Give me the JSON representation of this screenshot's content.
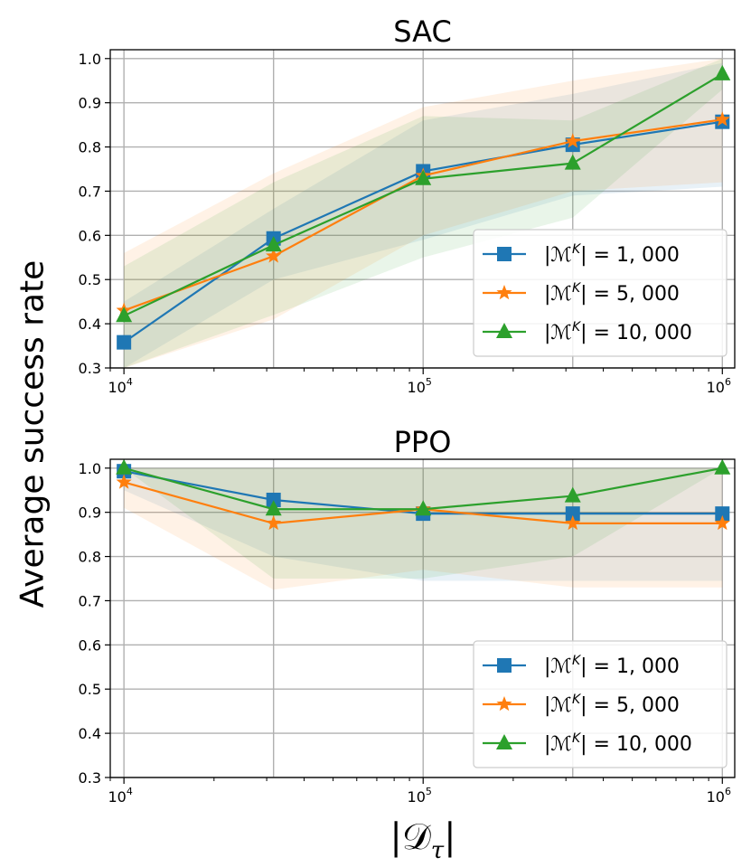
{
  "figure": {
    "ylabel": "Average success rate",
    "xlabel": "|𝒟",
    "xlabel_sub": "τ",
    "xlabel_close": "|"
  },
  "colors": {
    "blue": "#1f77b4",
    "orange": "#ff7f0e",
    "green": "#2ca02c",
    "grid": "#b0b0b0"
  },
  "chart_data": [
    {
      "type": "line",
      "title": "SAC",
      "xscale": "log",
      "xlim": [
        9000,
        1100000
      ],
      "ylim": [
        0.3,
        1.02
      ],
      "grid": true,
      "legend_position": "lower-right",
      "x": [
        10000,
        31623,
        100000,
        316228,
        1000000
      ],
      "xticks": [
        10000,
        100000,
        1000000
      ],
      "xtick_base": "10",
      "xtick_exps": [
        "4",
        "5",
        "6"
      ],
      "yticks": [
        "0.3",
        "0.4",
        "0.5",
        "0.6",
        "0.7",
        "0.8",
        "0.9",
        "1.0"
      ],
      "series": [
        {
          "name": "|ℳ",
          "name_sup": "K",
          "name_suffix": "| = 1, 000",
          "color": "#1f77b4",
          "marker": "square",
          "values": [
            0.358,
            0.593,
            0.745,
            0.805,
            0.857
          ],
          "lower": [
            0.3,
            0.5,
            0.59,
            0.69,
            0.71
          ],
          "upper": [
            0.45,
            0.66,
            0.86,
            0.92,
            0.99
          ]
        },
        {
          "name": "|ℳ",
          "name_sup": "K",
          "name_suffix": "| = 5, 000",
          "color": "#ff7f0e",
          "marker": "star",
          "values": [
            0.43,
            0.553,
            0.735,
            0.813,
            0.862
          ],
          "lower": [
            0.3,
            0.41,
            0.6,
            0.7,
            0.72
          ],
          "upper": [
            0.56,
            0.74,
            0.89,
            0.95,
            1.0
          ]
        },
        {
          "name": "|ℳ",
          "name_sup": "K",
          "name_suffix": "| = 10, 000",
          "color": "#2ca02c",
          "marker": "triangle",
          "values": [
            0.418,
            0.578,
            0.728,
            0.763,
            0.965
          ],
          "lower": [
            0.3,
            0.42,
            0.55,
            0.64,
            0.93
          ],
          "upper": [
            0.53,
            0.72,
            0.87,
            0.86,
            1.0
          ]
        }
      ]
    },
    {
      "type": "line",
      "title": "PPO",
      "xscale": "log",
      "xlim": [
        9000,
        1100000
      ],
      "ylim": [
        0.3,
        1.02
      ],
      "grid": true,
      "legend_position": "lower-right",
      "x": [
        10000,
        31623,
        100000,
        316228,
        1000000
      ],
      "xticks": [
        10000,
        100000,
        1000000
      ],
      "xtick_base": "10",
      "xtick_exps": [
        "4",
        "5",
        "6"
      ],
      "yticks": [
        "0.3",
        "0.4",
        "0.5",
        "0.6",
        "0.7",
        "0.8",
        "0.9",
        "1.0"
      ],
      "series": [
        {
          "name": "|ℳ",
          "name_sup": "K",
          "name_suffix": "| = 1, 000",
          "color": "#1f77b4",
          "marker": "square",
          "values": [
            0.993,
            0.928,
            0.897,
            0.897,
            0.897
          ],
          "lower": [
            0.95,
            0.8,
            0.745,
            0.745,
            0.745
          ],
          "upper": [
            1.0,
            1.0,
            1.0,
            1.0,
            1.0
          ]
        },
        {
          "name": "|ℳ",
          "name_sup": "K",
          "name_suffix": "| = 5, 000",
          "color": "#ff7f0e",
          "marker": "star",
          "values": [
            0.968,
            0.875,
            0.907,
            0.875,
            0.875
          ],
          "lower": [
            0.91,
            0.725,
            0.77,
            0.73,
            0.73
          ],
          "upper": [
            1.0,
            1.0,
            1.0,
            1.0,
            1.0
          ]
        },
        {
          "name": "|ℳ",
          "name_sup": "K",
          "name_suffix": "| = 10, 000",
          "color": "#2ca02c",
          "marker": "triangle",
          "values": [
            1.0,
            0.907,
            0.907,
            0.937,
            1.0
          ],
          "lower": [
            1.0,
            0.75,
            0.75,
            0.8,
            1.0
          ],
          "upper": [
            1.0,
            1.0,
            1.0,
            1.0,
            1.0
          ]
        }
      ]
    }
  ]
}
